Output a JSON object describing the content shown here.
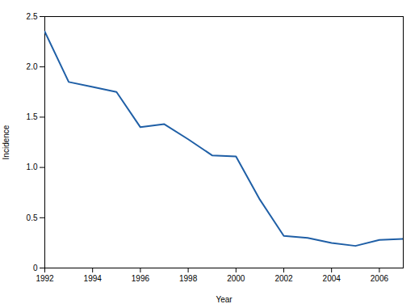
{
  "chart_data": {
    "type": "line",
    "x": [
      1992,
      1993,
      1994,
      1995,
      1996,
      1997,
      1998,
      1999,
      2000,
      2001,
      2002,
      2003,
      2004,
      2005,
      2006,
      2007
    ],
    "values": [
      2.35,
      1.85,
      1.8,
      1.75,
      1.4,
      1.43,
      1.28,
      1.12,
      1.11,
      0.68,
      0.32,
      0.3,
      0.25,
      0.22,
      0.28,
      0.29
    ],
    "color": "#1f5fa6",
    "xlabel": "Year",
    "ylabel": "Incidence",
    "xlim": [
      1992,
      2007
    ],
    "ylim": [
      0,
      2.5
    ],
    "xticks": [
      1992,
      1994,
      1996,
      1998,
      2000,
      2002,
      2004,
      2006
    ],
    "yticks": [
      0,
      0.5,
      {
        "value": 1.0,
        "label": "1.0"
      },
      1.5,
      {
        "value": 2.0,
        "label": "2.0"
      },
      2.5
    ],
    "grid": false
  }
}
